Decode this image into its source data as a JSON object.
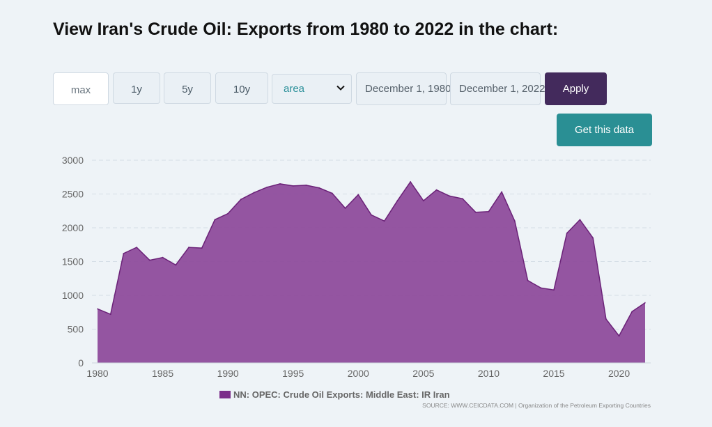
{
  "page": {
    "title": "View Iran's Crude Oil: Exports from 1980 to 2022 in the chart:"
  },
  "controls": {
    "range_buttons": [
      "max",
      "1y",
      "5y",
      "10y"
    ],
    "active_range": "max",
    "chart_type_selected": "area",
    "start_date": "December 1, 1980",
    "end_date": "December 1, 2022",
    "apply_label": "Apply",
    "get_data_label": "Get this data"
  },
  "legend": {
    "label": "NN: OPEC: Crude Oil Exports: Middle East: IR Iran"
  },
  "source": "SOURCE: WWW.CEICDATA.COM | Organization of the Petroleum Exporting Countries",
  "colors": {
    "series_fill": "#8e4c9c",
    "series_line": "#6b2278",
    "legend_swatch": "#7b2d8a",
    "apply_bg": "#432a5c",
    "get_data_bg": "#2a8f94"
  },
  "chart_data": {
    "type": "area",
    "title": "",
    "xlabel": "",
    "ylabel": "",
    "xlim": [
      1980,
      2022
    ],
    "ylim": [
      0,
      3000
    ],
    "y_ticks": [
      0,
      500,
      1000,
      1500,
      2000,
      2500,
      3000
    ],
    "x_ticks": [
      1980,
      1985,
      1990,
      1995,
      2000,
      2005,
      2010,
      2015,
      2020
    ],
    "grid": true,
    "legend_position": "bottom",
    "series": [
      {
        "name": "NN: OPEC: Crude Oil Exports: Middle East: IR Iran",
        "x": [
          1980,
          1981,
          1982,
          1983,
          1984,
          1985,
          1986,
          1987,
          1988,
          1989,
          1990,
          1991,
          1992,
          1993,
          1994,
          1995,
          1996,
          1997,
          1998,
          1999,
          2000,
          2001,
          2002,
          2003,
          2004,
          2005,
          2006,
          2007,
          2008,
          2009,
          2010,
          2011,
          2012,
          2013,
          2014,
          2015,
          2016,
          2017,
          2018,
          2019,
          2020,
          2021,
          2022
        ],
        "values": [
          800,
          720,
          1620,
          1710,
          1520,
          1560,
          1450,
          1710,
          1700,
          2120,
          2210,
          2420,
          2520,
          2600,
          2650,
          2620,
          2630,
          2590,
          2510,
          2290,
          2490,
          2190,
          2100,
          2400,
          2680,
          2400,
          2560,
          2470,
          2430,
          2230,
          2240,
          2530,
          2100,
          1220,
          1110,
          1080,
          1920,
          2120,
          1850,
          650,
          400,
          760,
          890
        ]
      }
    ]
  }
}
